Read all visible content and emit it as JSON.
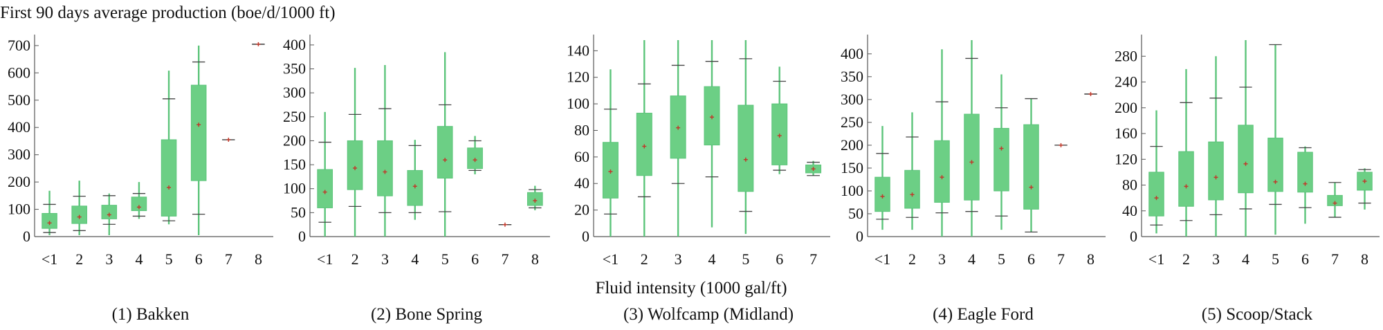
{
  "figure": {
    "ylabel": "First 90 days average production (boe/d/1000 ft)",
    "xlabel": "Fluid intensity (1000 gal/ft)",
    "colors": {
      "box": "#6ccf85",
      "whisker": "#5cc47a",
      "cap": "#444444",
      "mean": "#c0392b",
      "axis": "#555555"
    }
  },
  "chart_data": [
    {
      "type": "box",
      "caption": "(1) Bakken",
      "ylim": [
        0,
        720
      ],
      "yticks": [
        0,
        100,
        200,
        300,
        400,
        500,
        600,
        700
      ],
      "categories": [
        "<1",
        "2",
        "3",
        "4",
        "5",
        "6",
        "7",
        "8"
      ],
      "boxes": [
        {
          "min": 5,
          "p10": 15,
          "q1": 30,
          "median": 45,
          "mean": 50,
          "q3": 85,
          "p90": 118,
          "max": 168
        },
        {
          "min": 5,
          "p10": 22,
          "q1": 48,
          "median": 68,
          "mean": 72,
          "q3": 112,
          "p90": 148,
          "max": 205
        },
        {
          "min": 5,
          "p10": 45,
          "q1": 65,
          "median": 80,
          "mean": 80,
          "q3": 115,
          "p90": 150,
          "max": 158
        },
        {
          "min": 65,
          "p10": 75,
          "q1": 95,
          "median": 108,
          "mean": 108,
          "q3": 145,
          "p90": 158,
          "max": 200
        },
        {
          "min": 45,
          "p10": 58,
          "q1": 75,
          "median": 175,
          "mean": 180,
          "q3": 355,
          "p90": 505,
          "max": 608
        },
        {
          "min": 5,
          "p10": 82,
          "q1": 205,
          "median": 400,
          "mean": 410,
          "q3": 555,
          "p90": 640,
          "max": 700
        },
        {
          "min": 355,
          "p10": 355,
          "q1": 355,
          "median": 355,
          "mean": 355,
          "q3": 355,
          "p90": 355,
          "max": 355
        },
        {
          "min": 705,
          "p10": 705,
          "q1": 705,
          "median": 705,
          "mean": 705,
          "q3": 705,
          "p90": 705,
          "max": 705
        }
      ]
    },
    {
      "type": "box",
      "caption": "(2) Bone Spring",
      "ylim": [
        0,
        410
      ],
      "yticks": [
        0,
        50,
        100,
        150,
        200,
        250,
        300,
        350,
        400
      ],
      "categories": [
        "<1",
        "2",
        "3",
        "4",
        "5",
        "6",
        "7",
        "8"
      ],
      "boxes": [
        {
          "min": 0,
          "p10": 30,
          "q1": 60,
          "median": 90,
          "mean": 93,
          "q3": 140,
          "p90": 197,
          "max": 260
        },
        {
          "min": 0,
          "p10": 63,
          "q1": 98,
          "median": 140,
          "mean": 143,
          "q3": 200,
          "p90": 255,
          "max": 352
        },
        {
          "min": 0,
          "p10": 50,
          "q1": 85,
          "median": 130,
          "mean": 135,
          "q3": 200,
          "p90": 267,
          "max": 358
        },
        {
          "min": 35,
          "p10": 50,
          "q1": 65,
          "median": 100,
          "mean": 105,
          "q3": 138,
          "p90": 190,
          "max": 202
        },
        {
          "min": 0,
          "p10": 52,
          "q1": 122,
          "median": 160,
          "mean": 160,
          "q3": 230,
          "p90": 275,
          "max": 385
        },
        {
          "min": 130,
          "p10": 138,
          "q1": 142,
          "median": 160,
          "mean": 160,
          "q3": 185,
          "p90": 200,
          "max": 210
        },
        {
          "min": 25,
          "p10": 25,
          "q1": 25,
          "median": 25,
          "mean": 25,
          "q3": 25,
          "p90": 25,
          "max": 25
        },
        {
          "min": 55,
          "p10": 60,
          "q1": 65,
          "median": 75,
          "mean": 75,
          "q3": 92,
          "p90": 98,
          "max": 106
        }
      ]
    },
    {
      "type": "box",
      "caption": "(3) Wolfcamp (Midland)",
      "ylim": [
        0,
        148
      ],
      "yticks": [
        0,
        20,
        40,
        60,
        80,
        100,
        120,
        140
      ],
      "categories": [
        "<1",
        "2",
        "3",
        "4",
        "5",
        "6",
        "7"
      ],
      "boxes": [
        {
          "min": 0,
          "p10": 17,
          "q1": 29,
          "median": 47,
          "mean": 49,
          "q3": 71,
          "p90": 96,
          "max": 126
        },
        {
          "min": 0,
          "p10": 30,
          "q1": 46,
          "median": 66,
          "mean": 68,
          "q3": 93,
          "p90": 115,
          "max": 148
        },
        {
          "min": 0,
          "p10": 40,
          "q1": 59,
          "median": 80,
          "mean": 82,
          "q3": 106,
          "p90": 129,
          "max": 148
        },
        {
          "min": 7,
          "p10": 45,
          "q1": 69,
          "median": 88,
          "mean": 90,
          "q3": 113,
          "p90": 132,
          "max": 148
        },
        {
          "min": 2,
          "p10": 19,
          "q1": 34,
          "median": 57,
          "mean": 58,
          "q3": 99,
          "p90": 134,
          "max": 148
        },
        {
          "min": 47,
          "p10": 50,
          "q1": 54,
          "median": 75,
          "mean": 76,
          "q3": 100,
          "p90": 117,
          "max": 128
        },
        {
          "min": 46,
          "p10": 46,
          "q1": 48,
          "median": 51,
          "mean": 51,
          "q3": 54,
          "p90": 56,
          "max": 57
        }
      ]
    },
    {
      "type": "box",
      "caption": "(4) Eagle Ford",
      "ylim": [
        0,
        430
      ],
      "yticks": [
        0,
        50,
        100,
        150,
        200,
        250,
        300,
        350,
        400
      ],
      "categories": [
        "<1",
        "2",
        "3",
        "4",
        "5",
        "6",
        "7",
        "8"
      ],
      "boxes": [
        {
          "min": 15,
          "p10": 38,
          "q1": 55,
          "median": 85,
          "mean": 88,
          "q3": 130,
          "p90": 182,
          "max": 242
        },
        {
          "min": 15,
          "p10": 42,
          "q1": 62,
          "median": 90,
          "mean": 92,
          "q3": 145,
          "p90": 218,
          "max": 272
        },
        {
          "min": 0,
          "p10": 52,
          "q1": 75,
          "median": 125,
          "mean": 130,
          "q3": 210,
          "p90": 295,
          "max": 410
        },
        {
          "min": 0,
          "p10": 55,
          "q1": 80,
          "median": 160,
          "mean": 163,
          "q3": 268,
          "p90": 390,
          "max": 430
        },
        {
          "min": 15,
          "p10": 45,
          "q1": 100,
          "median": 190,
          "mean": 193,
          "q3": 237,
          "p90": 282,
          "max": 355
        },
        {
          "min": 10,
          "p10": 10,
          "q1": 60,
          "median": 105,
          "mean": 108,
          "q3": 245,
          "p90": 302,
          "max": 302
        },
        {
          "min": 200,
          "p10": 200,
          "q1": 200,
          "median": 200,
          "mean": 200,
          "q3": 200,
          "p90": 200,
          "max": 200
        },
        {
          "min": 312,
          "p10": 312,
          "q1": 312,
          "median": 312,
          "mean": 312,
          "q3": 312,
          "p90": 312,
          "max": 312
        }
      ]
    },
    {
      "type": "box",
      "caption": "(5) Scoop/Stack",
      "ylim": [
        0,
        305
      ],
      "yticks": [
        0,
        40,
        80,
        120,
        160,
        200,
        240,
        280
      ],
      "categories": [
        "<1",
        "2",
        "3",
        "4",
        "5",
        "6",
        "7",
        "8"
      ],
      "boxes": [
        {
          "min": 5,
          "p10": 18,
          "q1": 32,
          "median": 58,
          "mean": 60,
          "q3": 100,
          "p90": 140,
          "max": 196
        },
        {
          "min": 0,
          "p10": 25,
          "q1": 47,
          "median": 76,
          "mean": 78,
          "q3": 132,
          "p90": 208,
          "max": 260
        },
        {
          "min": 0,
          "p10": 34,
          "q1": 57,
          "median": 90,
          "mean": 92,
          "q3": 147,
          "p90": 215,
          "max": 280
        },
        {
          "min": 0,
          "p10": 43,
          "q1": 68,
          "median": 112,
          "mean": 113,
          "q3": 173,
          "p90": 232,
          "max": 305
        },
        {
          "min": 3,
          "p10": 50,
          "q1": 70,
          "median": 84,
          "mean": 85,
          "q3": 153,
          "p90": 298,
          "max": 298
        },
        {
          "min": 20,
          "p10": 45,
          "q1": 69,
          "median": 80,
          "mean": 82,
          "q3": 131,
          "p90": 138,
          "max": 140
        },
        {
          "min": 30,
          "p10": 30,
          "q1": 48,
          "median": 52,
          "mean": 52,
          "q3": 64,
          "p90": 84,
          "max": 84
        },
        {
          "min": 42,
          "p10": 52,
          "q1": 72,
          "median": 86,
          "mean": 86,
          "q3": 100,
          "p90": 104,
          "max": 106
        }
      ]
    }
  ]
}
